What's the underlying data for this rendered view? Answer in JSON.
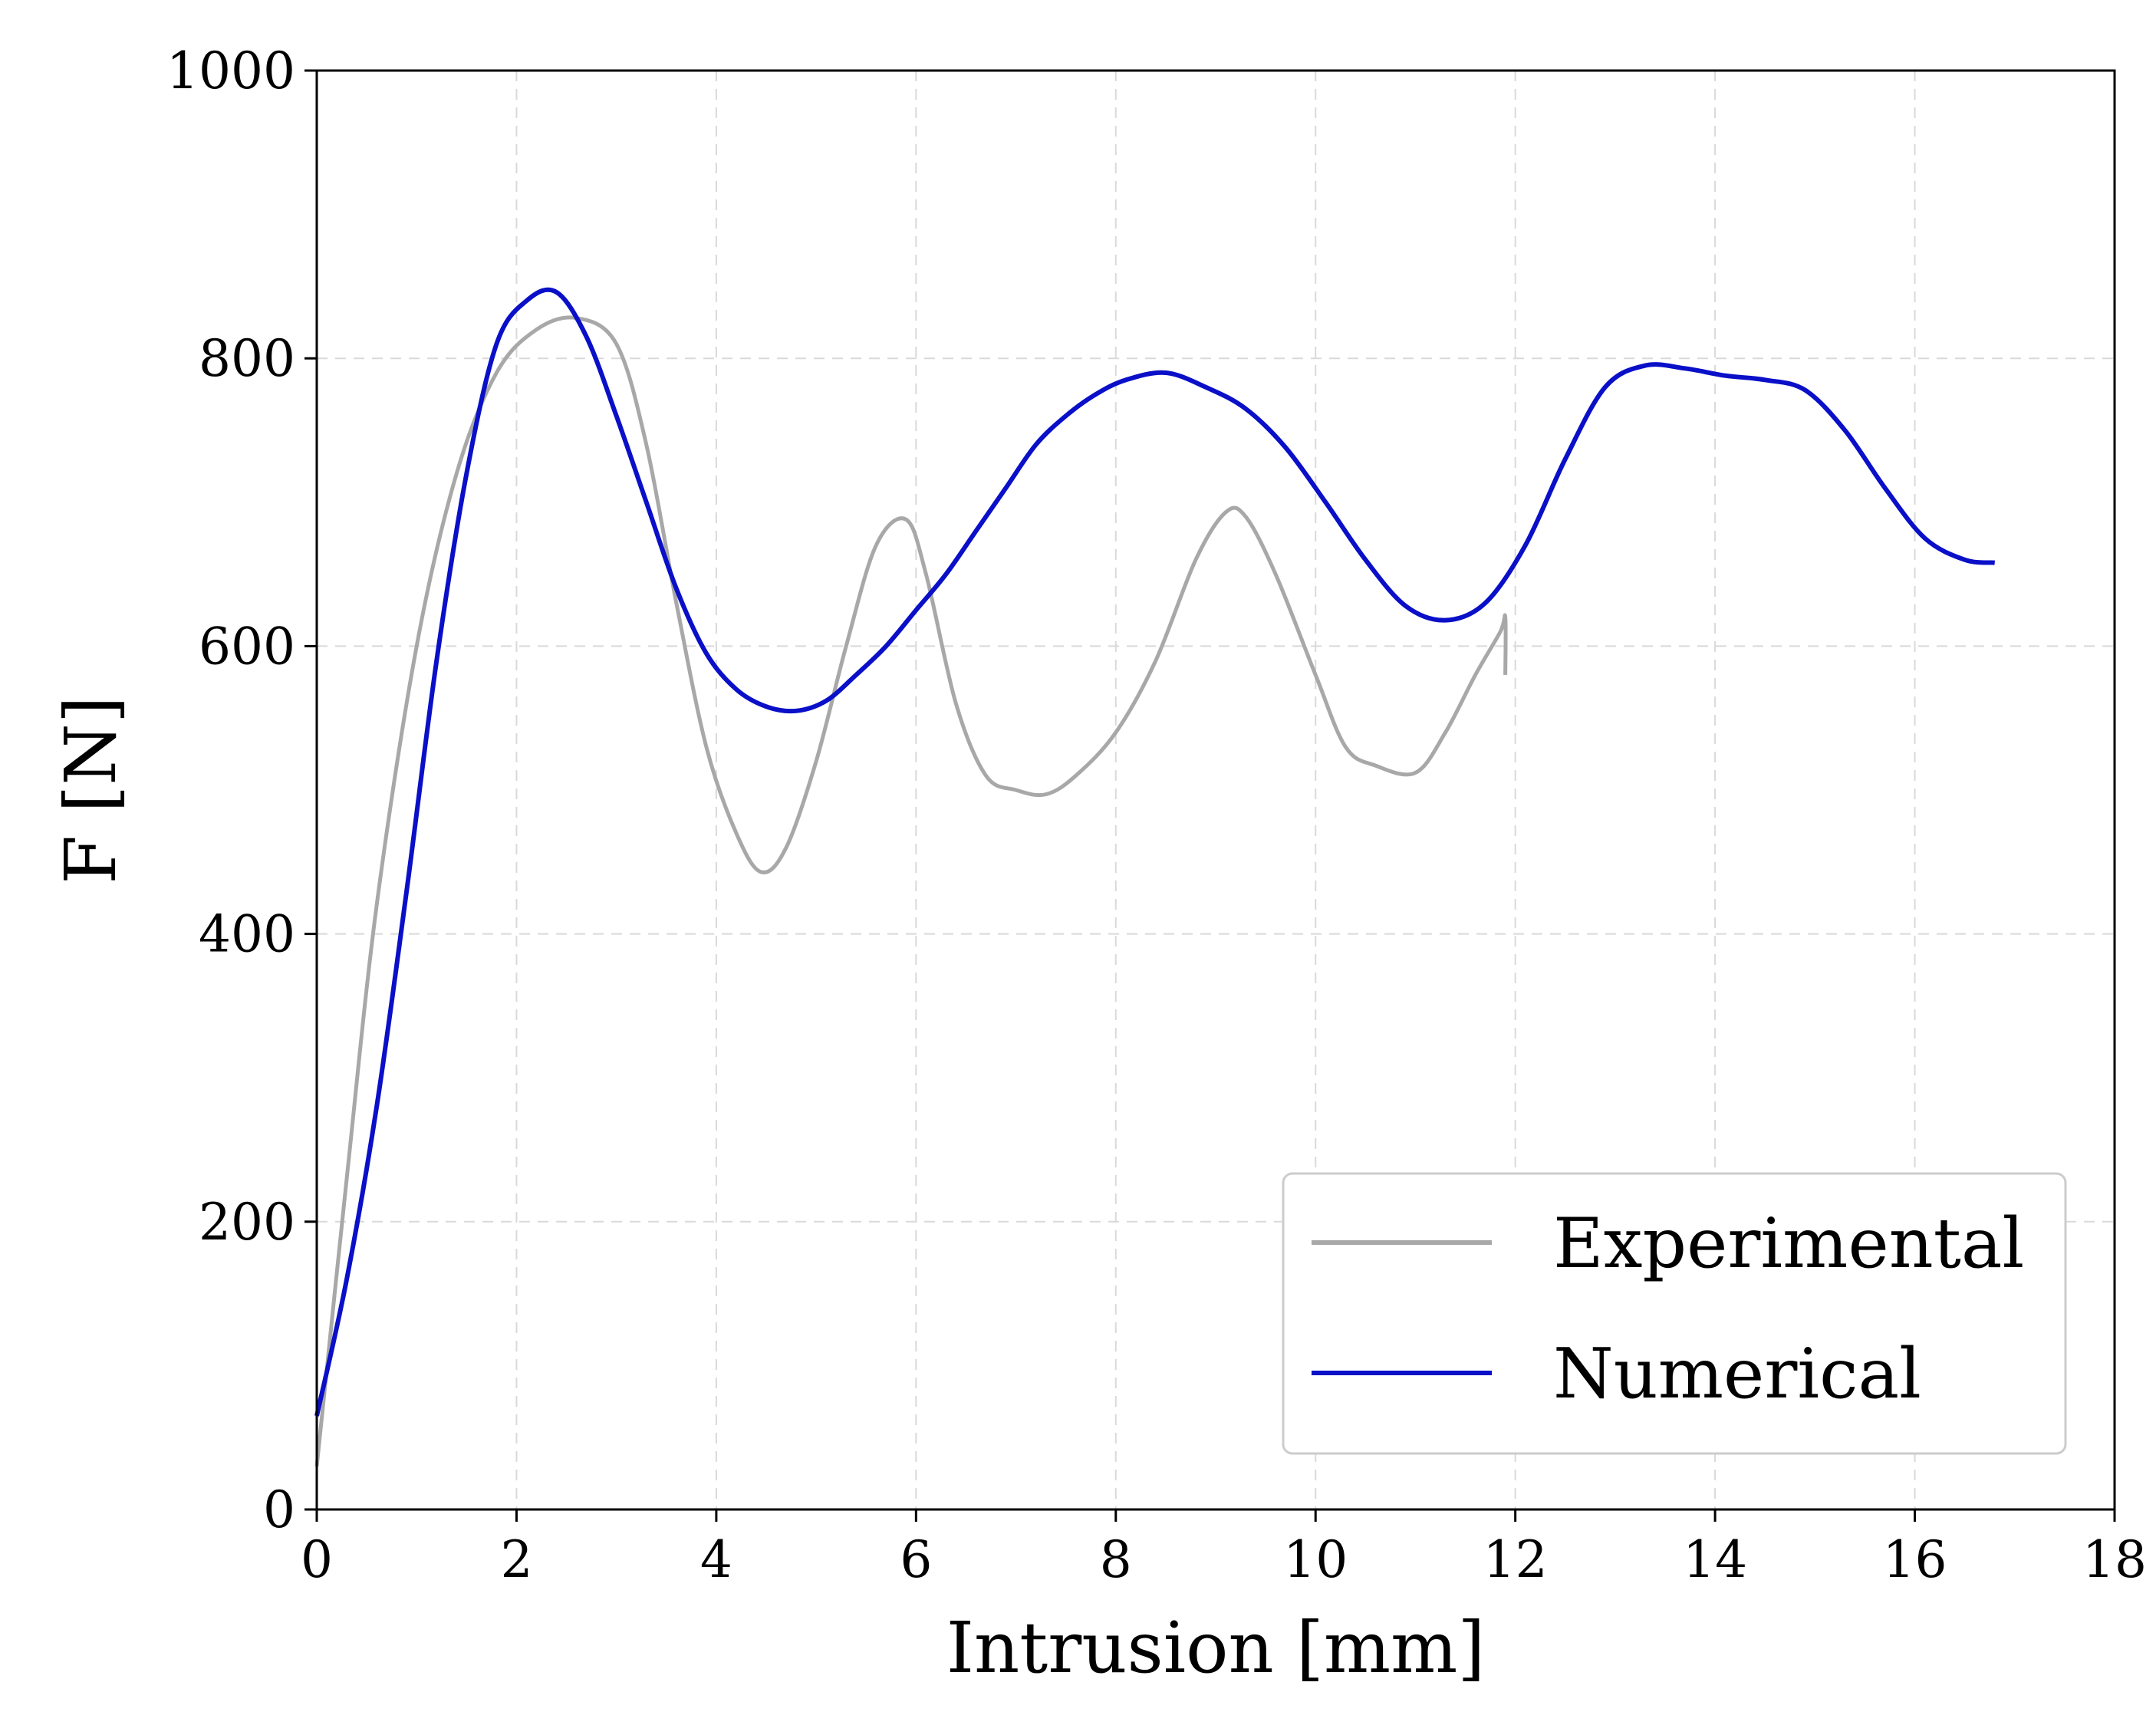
{
  "chart_data": {
    "type": "line",
    "title": "",
    "xlabel": "Intrusion [mm]",
    "ylabel": "F [N]",
    "xlim": [
      0,
      18
    ],
    "ylim": [
      0,
      1000
    ],
    "xticks": [
      0,
      2,
      4,
      6,
      8,
      10,
      12,
      14,
      16,
      18
    ],
    "yticks": [
      0,
      200,
      400,
      600,
      800,
      1000
    ],
    "grid": true,
    "legend_position": "bottom-right",
    "series": [
      {
        "name": "Experimental",
        "color": "#a8a8a8",
        "x": [
          0,
          0.3,
          0.6,
          1.0,
          1.4,
          1.8,
          2.2,
          2.6,
          3.0,
          3.3,
          3.6,
          3.9,
          4.2,
          4.45,
          4.7,
          5.0,
          5.3,
          5.6,
          5.9,
          6.1,
          6.4,
          6.7,
          7.0,
          7.3,
          7.6,
          8.0,
          8.4,
          8.8,
          9.1,
          9.3,
          9.6,
          10.0,
          10.3,
          10.6,
          11.0,
          11.3,
          11.6,
          11.85,
          11.9,
          11.9
        ],
        "y": [
          30,
          230,
          420,
          600,
          720,
          790,
          820,
          828,
          810,
          740,
          630,
          530,
          470,
          443,
          460,
          520,
          600,
          670,
          688,
          650,
          560,
          510,
          500,
          497,
          510,
          540,
          590,
          660,
          693,
          690,
          650,
          580,
          530,
          517,
          512,
          540,
          580,
          610,
          620,
          580
        ]
      },
      {
        "name": "Numerical",
        "color": "#0a0fc8",
        "x": [
          0,
          0.3,
          0.6,
          0.9,
          1.2,
          1.5,
          1.8,
          2.1,
          2.4,
          2.7,
          3.0,
          3.3,
          3.6,
          3.9,
          4.2,
          4.5,
          4.8,
          5.1,
          5.4,
          5.7,
          6.0,
          6.3,
          6.6,
          6.9,
          7.2,
          7.5,
          7.8,
          8.1,
          8.5,
          8.9,
          9.3,
          9.7,
          10.1,
          10.5,
          10.9,
          11.3,
          11.7,
          12.1,
          12.5,
          12.9,
          13.3,
          13.7,
          14.1,
          14.5,
          14.9,
          15.3,
          15.7,
          16.1,
          16.5,
          16.8
        ],
        "y": [
          65,
          160,
          280,
          430,
          590,
          720,
          810,
          840,
          846,
          815,
          760,
          700,
          640,
          595,
          570,
          558,
          555,
          562,
          580,
          600,
          625,
          650,
          680,
          710,
          740,
          760,
          775,
          785,
          790,
          780,
          765,
          738,
          700,
          660,
          628,
          618,
          630,
          670,
          730,
          780,
          795,
          793,
          788,
          785,
          778,
          750,
          710,
          675,
          660,
          658
        ]
      }
    ]
  }
}
